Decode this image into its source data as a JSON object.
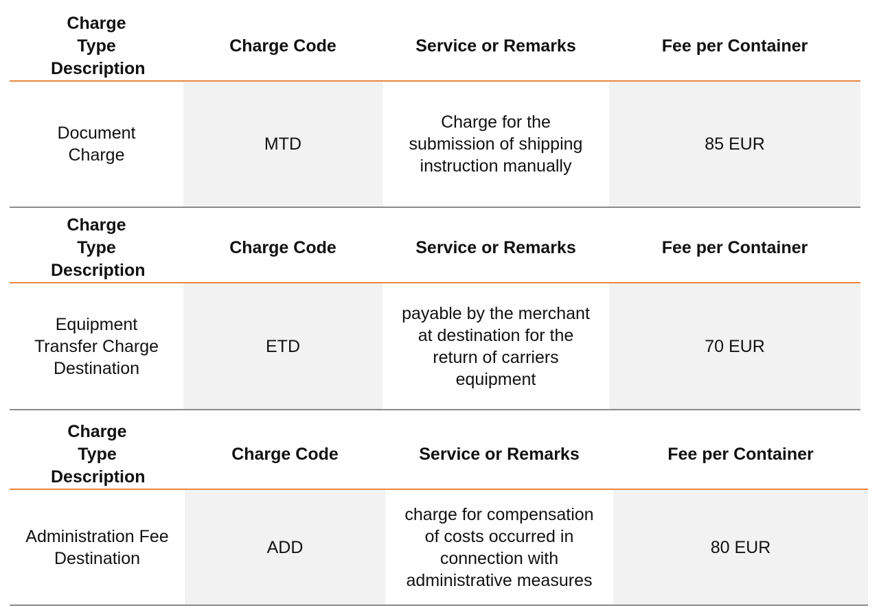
{
  "tables": [
    {
      "headers": [
        "Charge Type Description",
        "Charge Code",
        "Service or Remarks",
        "Fee per Container"
      ],
      "row": {
        "description": "Document Charge",
        "code": "MTD",
        "remarks": "Charge for the submission of shipping instruction manually",
        "fee": "85 EUR"
      }
    },
    {
      "headers": [
        "Charge Type Description",
        "Charge Code",
        "Service or Remarks",
        "Fee per Container"
      ],
      "row": {
        "description": "Equipment Transfer Charge Destination",
        "code": "ETD",
        "remarks": "payable by the merchant at destination for the return of carriers equipment",
        "fee": "70 EUR"
      }
    },
    {
      "headers": [
        "Charge Type Description",
        "Charge Code",
        "Service or Remarks",
        "Fee per Container"
      ],
      "row": {
        "description": "Administration Fee Destination",
        "code": "ADD",
        "remarks": "charge for compensation of costs occurred in connection with administrative measures",
        "fee": "80 EUR"
      }
    }
  ],
  "colors": {
    "header_rule": "#e8873c",
    "row_rule": "#8a8a8a",
    "shade": "#f2f2f2"
  }
}
